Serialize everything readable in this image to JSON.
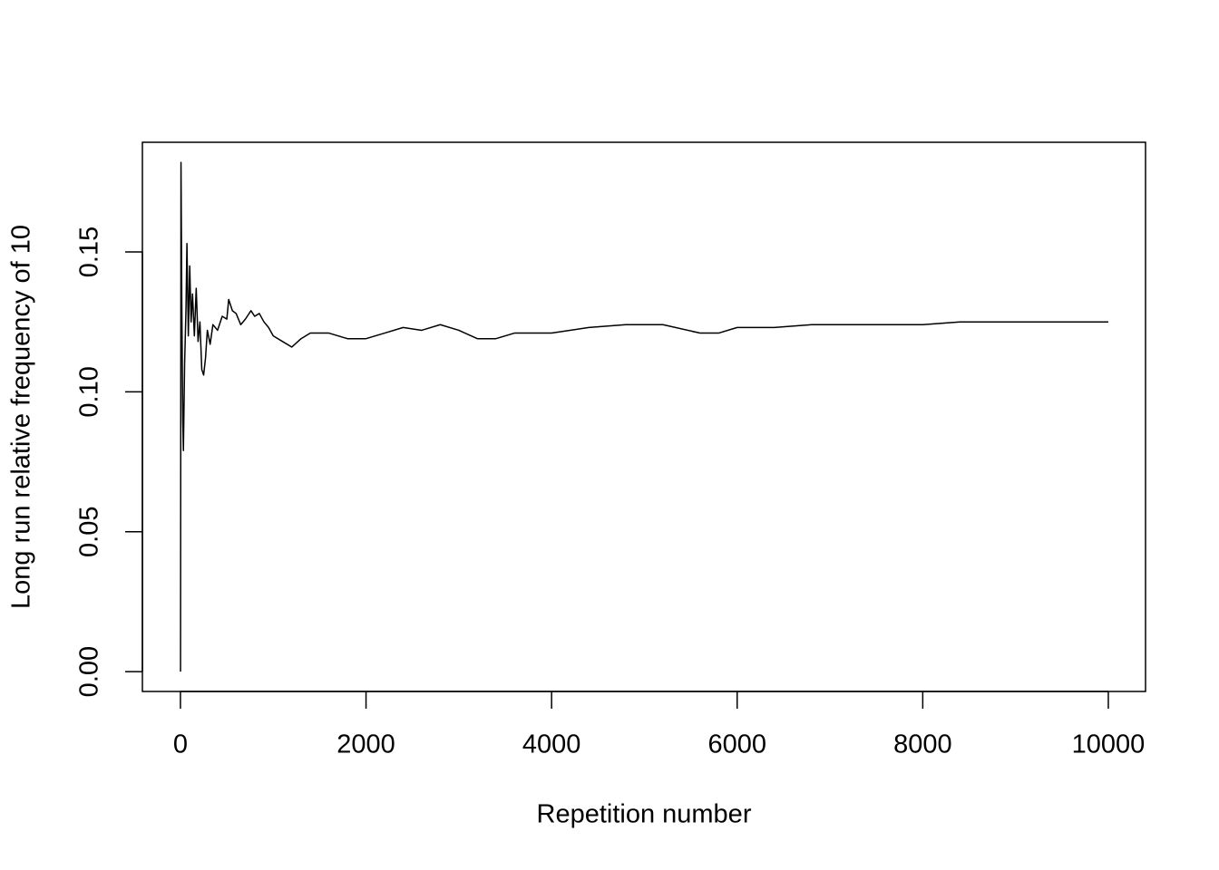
{
  "chart_data": {
    "type": "line",
    "x_label": "Repetition number",
    "y_label": "Long run relative frequency of 10",
    "xlim": [
      -410,
      10401
    ],
    "ylim": [
      -0.0071,
      0.1892
    ],
    "xticks": [
      0,
      2000,
      4000,
      6000,
      8000,
      10000
    ],
    "yticks": [
      {
        "value": 0,
        "label": "0.00"
      },
      0.05,
      {
        "value": 0.1,
        "label": "0.10"
      },
      0.15
    ],
    "color": "#000000",
    "x": [
      1,
      6,
      15,
      25,
      32,
      45,
      60,
      70,
      85,
      100,
      115,
      130,
      150,
      170,
      190,
      210,
      230,
      250,
      270,
      290,
      320,
      350,
      400,
      450,
      500,
      520,
      560,
      600,
      650,
      700,
      760,
      800,
      850,
      900,
      950,
      1000,
      1100,
      1200,
      1300,
      1400,
      1600,
      1800,
      2000,
      2200,
      2400,
      2600,
      2800,
      3000,
      3200,
      3400,
      3600,
      4000,
      4400,
      4800,
      5200,
      5600,
      5800,
      6000,
      6400,
      6800,
      7200,
      7600,
      8000,
      8400,
      8800,
      9200,
      9600,
      10000
    ],
    "values": [
      0,
      0.182,
      0.13,
      0.09,
      0.079,
      0.11,
      0.13,
      0.153,
      0.12,
      0.145,
      0.125,
      0.135,
      0.12,
      0.137,
      0.118,
      0.125,
      0.108,
      0.106,
      0.112,
      0.122,
      0.117,
      0.124,
      0.122,
      0.127,
      0.126,
      0.133,
      0.129,
      0.128,
      0.124,
      0.126,
      0.129,
      0.127,
      0.128,
      0.125,
      0.123,
      0.12,
      0.118,
      0.116,
      0.119,
      0.121,
      0.121,
      0.119,
      0.119,
      0.121,
      0.123,
      0.122,
      0.124,
      0.122,
      0.119,
      0.119,
      0.121,
      0.121,
      0.123,
      0.124,
      0.124,
      0.121,
      0.121,
      0.123,
      0.123,
      0.124,
      0.124,
      0.124,
      0.124,
      0.125,
      0.125,
      0.125,
      0.125,
      0.125
    ]
  }
}
